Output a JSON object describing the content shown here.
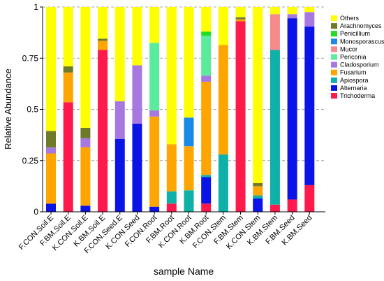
{
  "chart_data": {
    "type": "bar",
    "stacked": true,
    "xlabel": "sample Name",
    "ylabel": "Relative Abundance",
    "ylim": [
      0,
      1
    ],
    "yticks": [
      0,
      0.25,
      0.5,
      0.75,
      1
    ],
    "ytick_labels": [
      "0",
      "0.25",
      "0.5",
      "0.75",
      "1"
    ],
    "grid": "dashed horizontal",
    "legend_position": "right",
    "categories": [
      "F.CON.Soil.E",
      "F.BM.Soil.E",
      "K.CON.Soil.E",
      "K.BM.Soil.E",
      "F.CON.Seed.E",
      "K.CON.Seed",
      "F.CON.Root",
      "F.BM.Root",
      "K.CON.Root",
      "K.BM.Root",
      "F.CON.Stem",
      "F.BM.Stem",
      "K.CON.Stem",
      "K.BM.Stem",
      "F.BM.Seed",
      "K.BM.Seed"
    ],
    "series": [
      {
        "name": "Trichoderma",
        "color": "#ff1a4b",
        "values": [
          0,
          0.535,
          0,
          0.79,
          0,
          0,
          0,
          0.04,
          0,
          0.04,
          0,
          0.93,
          0,
          0.035,
          0.06,
          0.13
        ]
      },
      {
        "name": "Alternaria",
        "color": "#0a14e6",
        "values": [
          0.04,
          0,
          0.03,
          0,
          0.355,
          0.43,
          0.025,
          0,
          0,
          0.13,
          0,
          0,
          0.065,
          0,
          0.885,
          0.775
        ]
      },
      {
        "name": "Apiospora",
        "color": "#0fb0a8",
        "values": [
          0,
          0,
          0,
          0,
          0,
          0,
          0,
          0.06,
          0.105,
          0.01,
          0.28,
          0,
          0.015,
          0.755,
          0,
          0
        ]
      },
      {
        "name": "Fusarium",
        "color": "#ffa500",
        "values": [
          0.245,
          0.145,
          0.285,
          0.045,
          0,
          0,
          0.44,
          0.23,
          0.215,
          0.455,
          0.535,
          0.01,
          0.045,
          0,
          0,
          0
        ]
      },
      {
        "name": "Cladosporium",
        "color": "#a678e0",
        "values": [
          0.03,
          0,
          0.045,
          0,
          0.185,
          0.285,
          0.03,
          0,
          0,
          0.03,
          0,
          0,
          0,
          0,
          0.02,
          0.07
        ]
      },
      {
        "name": "Periconia",
        "color": "#5aec9c",
        "values": [
          0,
          0,
          0,
          0,
          0,
          0,
          0.33,
          0,
          0,
          0.195,
          0,
          0,
          0,
          0,
          0,
          0
        ]
      },
      {
        "name": "Mucor",
        "color": "#f58a8a",
        "values": [
          0,
          0,
          0,
          0,
          0,
          0,
          0,
          0,
          0,
          0,
          0,
          0,
          0,
          0.175,
          0,
          0
        ]
      },
      {
        "name": "Monosporascus",
        "color": "#1a8ae6",
        "values": [
          0,
          0,
          0,
          0,
          0,
          0,
          0,
          0,
          0.14,
          0,
          0,
          0,
          0,
          0,
          0,
          0
        ]
      },
      {
        "name": "Penicillium",
        "color": "#22dd22",
        "values": [
          0,
          0,
          0,
          0,
          0,
          0,
          0,
          0,
          0,
          0.02,
          0,
          0,
          0,
          0,
          0,
          0
        ]
      },
      {
        "name": "Arachnomyces",
        "color": "#6e7a28",
        "values": [
          0.08,
          0.03,
          0.05,
          0.01,
          0,
          0,
          0,
          0,
          0,
          0,
          0,
          0.01,
          0.015,
          0,
          0,
          0
        ]
      },
      {
        "name": "Others",
        "color": "#ffff00",
        "values": [
          0.605,
          0.29,
          0.59,
          0.155,
          0.46,
          0.285,
          0.175,
          0.67,
          0.54,
          0.12,
          0.185,
          0.05,
          0.86,
          0.035,
          0.035,
          0.025
        ]
      }
    ],
    "legend_order": [
      "Others",
      "Arachnomyces",
      "Penicillium",
      "Monosporascus",
      "Mucor",
      "Periconia",
      "Cladosporium",
      "Fusarium",
      "Apiospora",
      "Alternaria",
      "Trichoderma"
    ]
  }
}
